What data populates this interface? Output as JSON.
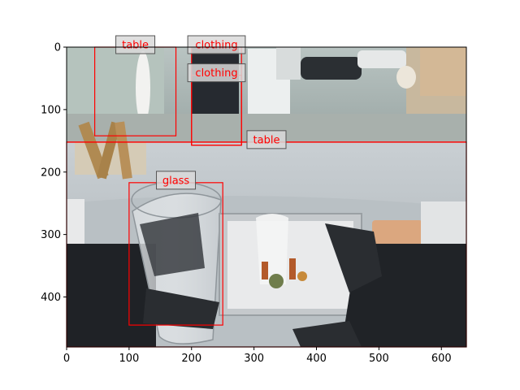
{
  "image": {
    "description_free": true,
    "x_range": [
      0,
      640
    ],
    "y_range": [
      480,
      0
    ],
    "x_ticks": [
      0,
      100,
      200,
      300,
      400,
      500,
      600
    ],
    "y_ticks": [
      0,
      100,
      200,
      300,
      400
    ],
    "box_color": "#ff0000"
  },
  "detections": [
    {
      "label": "table",
      "x0": 45,
      "y0": 0,
      "x1": 175,
      "y1": 142
    },
    {
      "label": "clothing",
      "x0": 200,
      "y0": 0,
      "x1": 280,
      "y1": 157
    },
    {
      "label": "clothing",
      "x0": 200,
      "y0": 45,
      "x1": 280,
      "y1": 157
    },
    {
      "label": "table",
      "x0": 0,
      "y0": 152,
      "x1": 640,
      "y1": 480
    },
    {
      "label": "glass",
      "x0": 100,
      "y0": 217,
      "x1": 250,
      "y1": 445
    }
  ]
}
